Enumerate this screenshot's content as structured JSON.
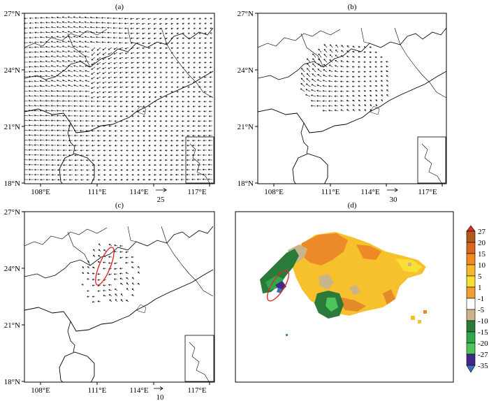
{
  "panels": [
    {
      "id": "a",
      "label": "(a)",
      "ref_vector": "25",
      "y_ticks": [
        "27°N",
        "24°N",
        "21°N",
        "18°N"
      ],
      "x_ticks": [
        "108°E",
        "111°E",
        "114°E",
        "117°E"
      ]
    },
    {
      "id": "b",
      "label": "(b)",
      "ref_vector": "30",
      "y_ticks": [
        "27°N",
        "24°N",
        "21°N",
        "18°N"
      ],
      "x_ticks": [
        "108°E",
        "111°E",
        "114°E",
        "117°E"
      ]
    },
    {
      "id": "c",
      "label": "(c)",
      "ref_vector": "10",
      "y_ticks": [
        "27°N",
        "24°N",
        "21°N",
        "18°N"
      ],
      "x_ticks": [
        "108°E",
        "111°E",
        "114°E",
        "117°E"
      ]
    },
    {
      "id": "d",
      "label": "(d)"
    }
  ],
  "colorbar": {
    "labels": [
      "27",
      "20",
      "15",
      "10",
      "5",
      "1",
      "-1",
      "-5",
      "-10",
      "-15",
      "-20",
      "-27",
      "-35"
    ],
    "colors": [
      "#d73027",
      "#b2591e",
      "#d9661f",
      "#f08a24",
      "#f5b930",
      "#f7df33",
      "#f39c33",
      "#ffffff",
      "#c9b58a",
      "#2a7a3a",
      "#2ea84a",
      "#4fc45a",
      "#3f2a8a",
      "#3b6fc4"
    ]
  },
  "colors": {
    "ellipse": "#e3262a",
    "coast": "#000000"
  }
}
